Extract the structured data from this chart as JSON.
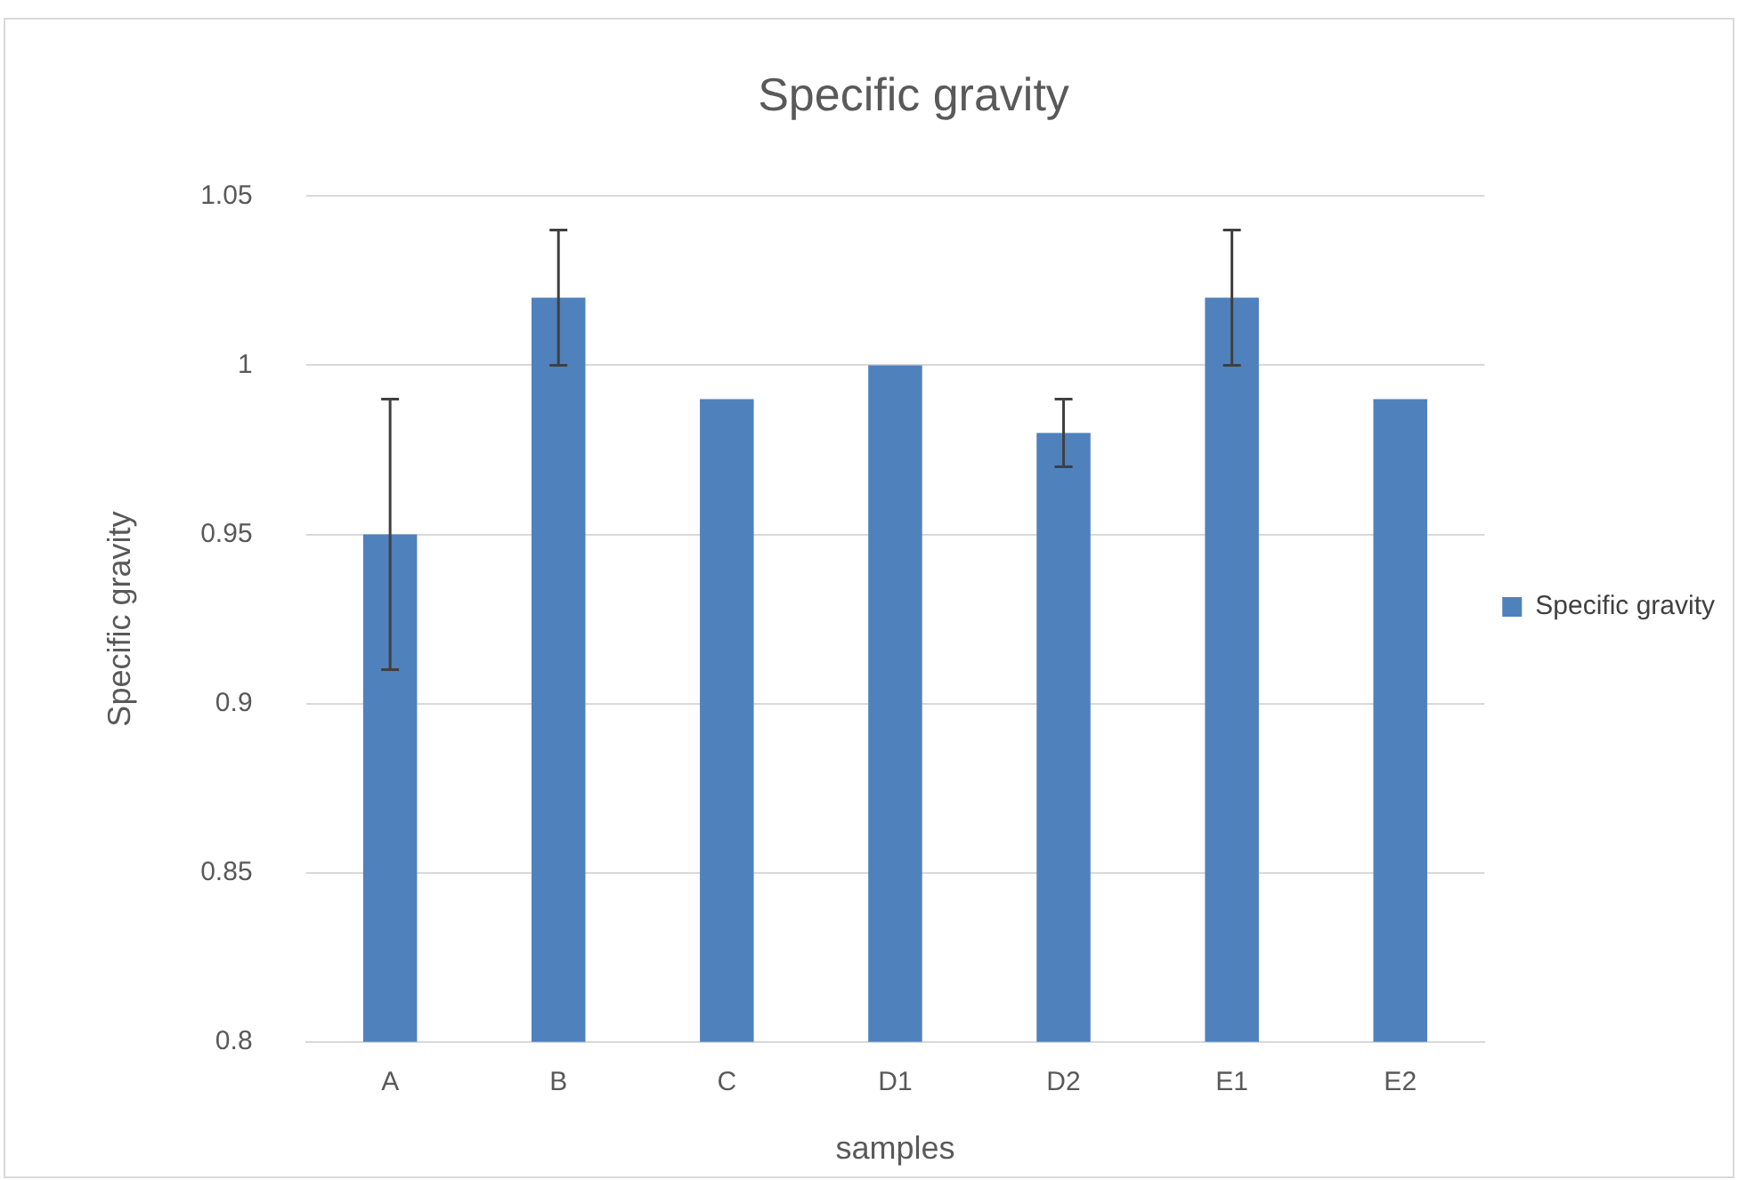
{
  "chart_data": {
    "type": "bar",
    "title": "Specific gravity",
    "xlabel": "samples",
    "ylabel": "Specific gravity",
    "categories": [
      "A",
      "B",
      "C",
      "D1",
      "D2",
      "E1",
      "E2"
    ],
    "series": [
      {
        "name": "Specific gravity",
        "color": "#4f81bd",
        "values": [
          0.95,
          1.02,
          0.99,
          1.0,
          0.98,
          1.02,
          0.99
        ],
        "errors": [
          0.04,
          0.02,
          null,
          null,
          0.01,
          0.02,
          null
        ]
      }
    ],
    "ylim": [
      0.8,
      1.05
    ],
    "yticks": [
      0.8,
      0.85,
      0.9,
      0.95,
      1,
      1.05
    ],
    "grid": "y",
    "legend": "right"
  }
}
